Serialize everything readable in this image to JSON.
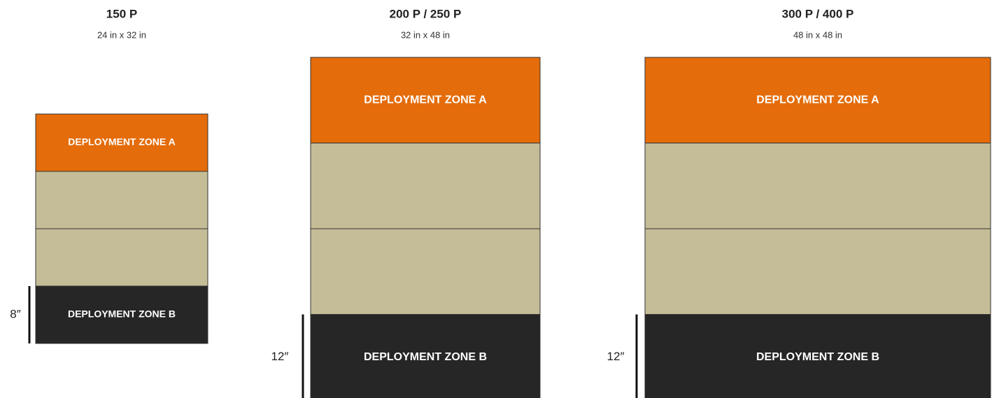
{
  "boards": [
    {
      "title": "150 P",
      "size": "24 in x 32 in",
      "zone_a": "DEPLOYMENT ZONE A",
      "zone_b": "DEPLOYMENT ZONE B",
      "measure": "8″"
    },
    {
      "title": "200 P / 250 P",
      "size": "32 in x 48 in",
      "zone_a": "DEPLOYMENT ZONE A",
      "zone_b": "DEPLOYMENT ZONE B",
      "measure": "12″"
    },
    {
      "title": "300 P / 400 P",
      "size": "48 in x 48 in",
      "zone_a": "DEPLOYMENT ZONE A",
      "zone_b": "DEPLOYMENT ZONE B",
      "measure": "12″"
    }
  ]
}
